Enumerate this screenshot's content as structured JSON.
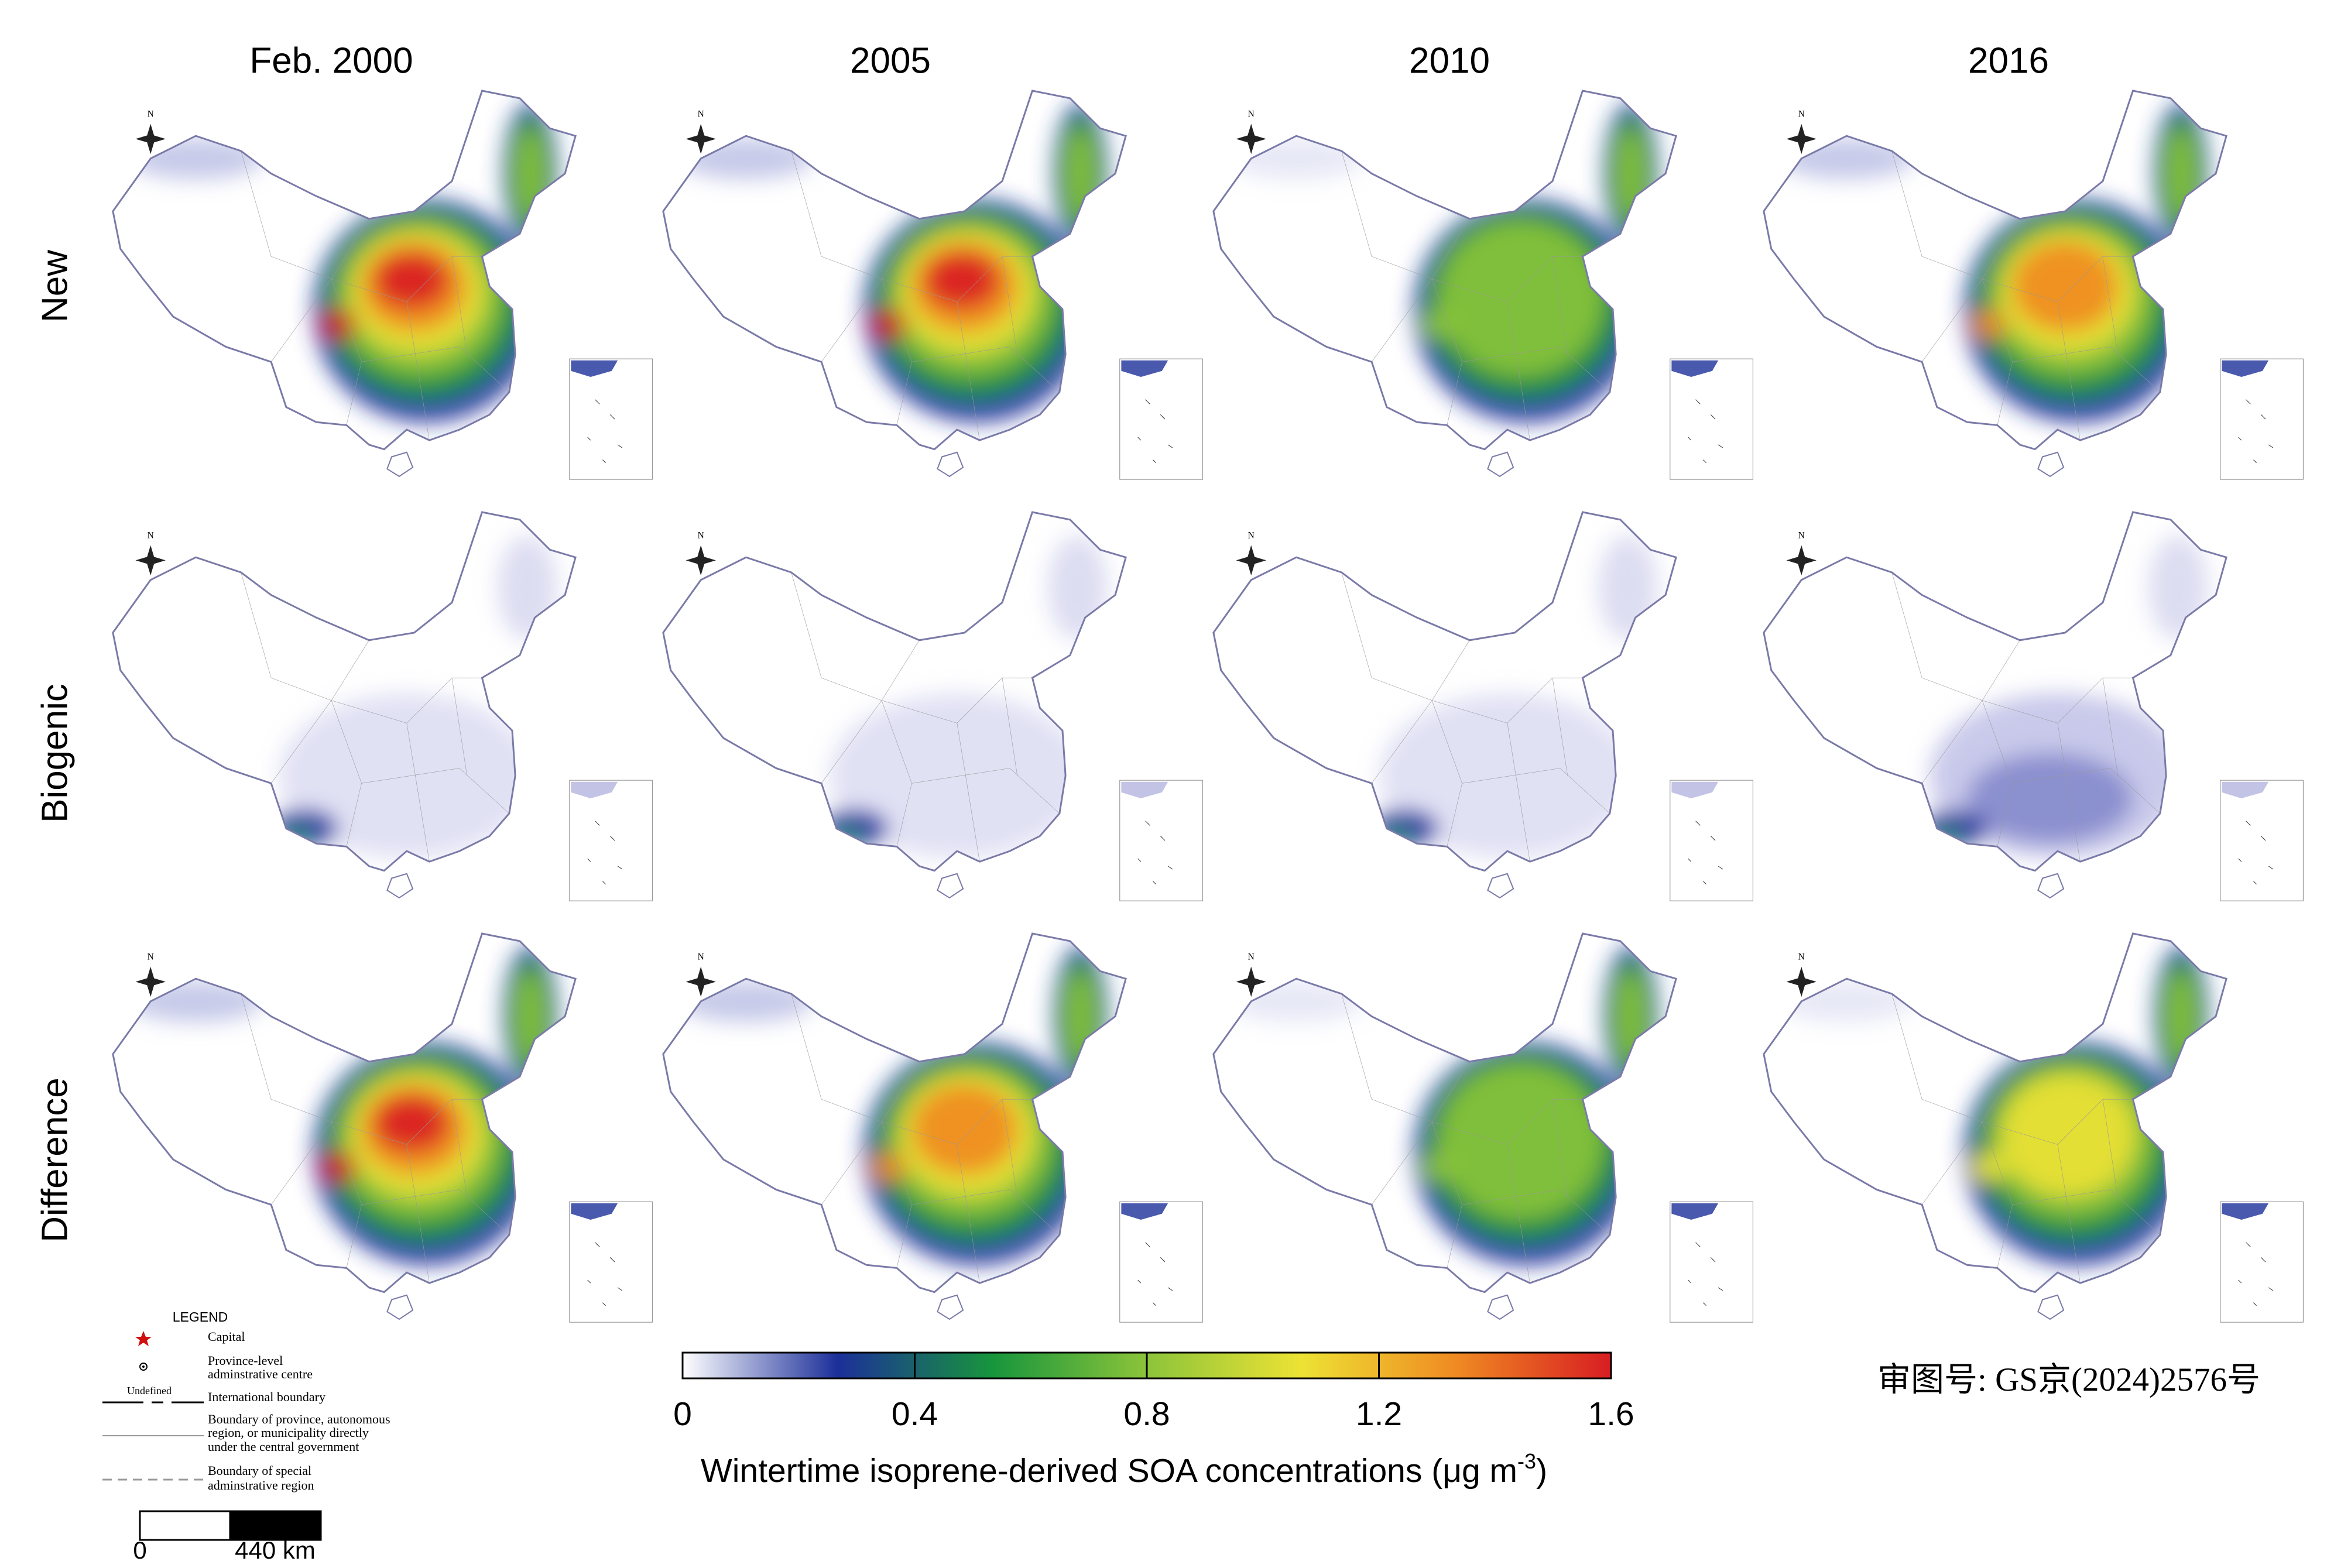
{
  "columns": [
    "Feb. 2000",
    "2005",
    "2010",
    "2016"
  ],
  "rows": [
    "New",
    "Biogenic",
    "Difference"
  ],
  "north": "N",
  "colorbar": {
    "label": "Wintertime isoprene-derived SOA concentrations (μg m",
    "label_sup": "-3",
    "label_end": ")",
    "lim": [
      0,
      1.6
    ],
    "ticks": [
      0,
      0.4,
      0.8,
      1.2,
      1.6
    ],
    "colors": [
      "#ffffff",
      "#1c2f9a",
      "#17953c",
      "#8cc43a",
      "#ede234",
      "#ef8a22",
      "#d81d22"
    ]
  },
  "legend": {
    "title": "LEGEND",
    "items": [
      [
        "Capital"
      ],
      [
        "Province-level",
        "adminstrative centre"
      ],
      [
        "Undefined"
      ],
      [
        "International boundary"
      ],
      [
        "Boundary of province, autonomous",
        "region, or municipality directly",
        "under the central government"
      ],
      [
        "Boundary of special",
        "adminstrative region"
      ]
    ]
  },
  "scale_bar": [
    "0",
    "440 km"
  ],
  "approval": "审图号: GS京(2024)2576号"
}
